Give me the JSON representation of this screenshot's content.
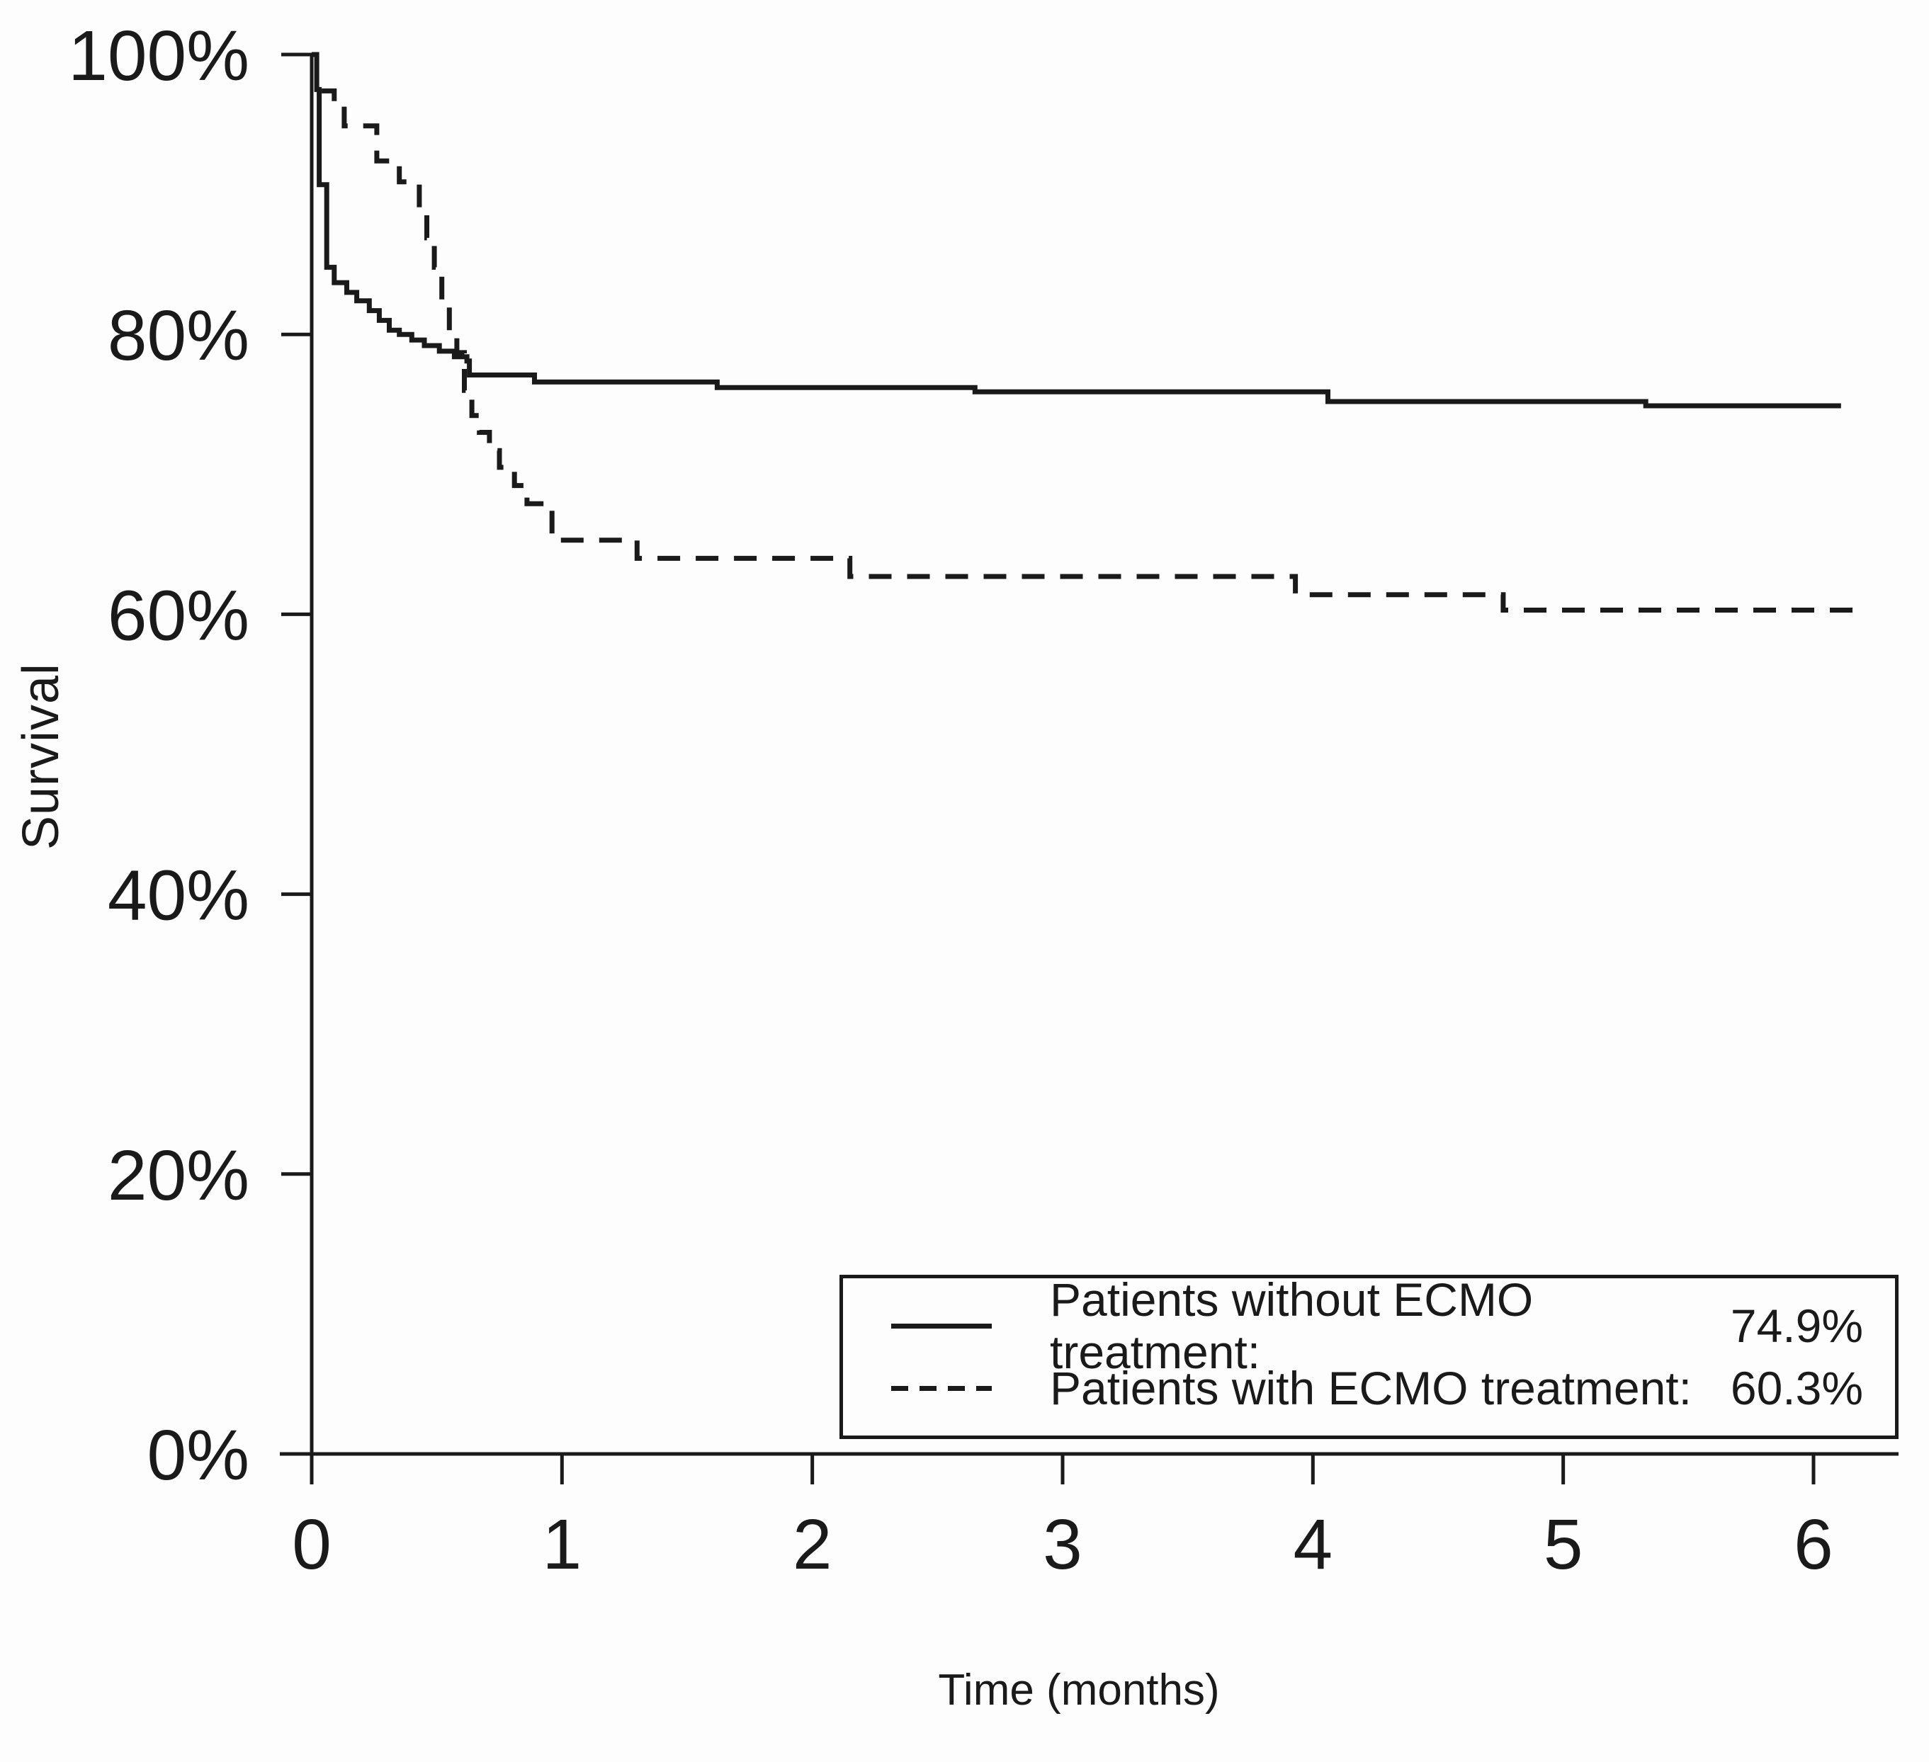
{
  "figure": {
    "background": "#fdfdfd",
    "line_color": "#1a1a1a",
    "text_color": "#1a1a1a"
  },
  "y_axis": {
    "title": "Survival",
    "tick_labels": [
      "0%",
      "20%",
      "40%",
      "60%",
      "80%",
      "100%"
    ],
    "tick_values": [
      0,
      20,
      40,
      60,
      80,
      100
    ]
  },
  "x_axis": {
    "title": "Time (months)",
    "tick_labels": [
      "0",
      "1",
      "2",
      "3",
      "4",
      "5",
      "6"
    ],
    "tick_values": [
      0,
      1,
      2,
      3,
      4,
      5,
      6
    ]
  },
  "legend": {
    "items": [
      {
        "style": "solid",
        "label": "Patients without ECMO treatment:",
        "value": "74.9%"
      },
      {
        "style": "dashed",
        "label": "Patients with ECMO treatment:",
        "value": "60.3%"
      }
    ]
  },
  "chart_data": {
    "type": "line",
    "subtype": "kaplan-meier-step",
    "title": "",
    "xlabel": "Time (months)",
    "ylabel": "Survival",
    "xlim": [
      0,
      6.34
    ],
    "ylim": [
      0,
      100
    ],
    "x_ticks": [
      0,
      1,
      2,
      3,
      4,
      5,
      6
    ],
    "y_ticks": [
      0,
      20,
      40,
      60,
      80,
      100
    ],
    "grid": false,
    "legend_position": "bottom-right",
    "series": [
      {
        "name": "Patients without ECMO treatment",
        "line_style": "solid",
        "final_value_pct": 74.9,
        "points": [
          [
            0,
            100
          ],
          [
            0.02,
            97.5
          ],
          [
            0.03,
            90.7
          ],
          [
            0.06,
            84.8
          ],
          [
            0.09,
            83.7
          ],
          [
            0.14,
            83.0
          ],
          [
            0.18,
            82.4
          ],
          [
            0.23,
            81.7
          ],
          [
            0.27,
            81.0
          ],
          [
            0.31,
            80.3
          ],
          [
            0.35,
            80.0
          ],
          [
            0.4,
            79.6
          ],
          [
            0.45,
            79.2
          ],
          [
            0.51,
            78.8
          ],
          [
            0.57,
            78.4
          ],
          [
            0.62,
            78.1
          ],
          [
            0.63,
            77.1
          ],
          [
            0.89,
            76.6
          ],
          [
            1.62,
            76.2
          ],
          [
            2.65,
            75.9
          ],
          [
            4.06,
            75.2
          ],
          [
            5.33,
            74.9
          ],
          [
            6.11,
            74.9
          ]
        ]
      },
      {
        "name": "Patients with ECMO treatment",
        "line_style": "dashed",
        "final_value_pct": 60.3,
        "points": [
          [
            0.04,
            97.4
          ],
          [
            0.09,
            96.1
          ],
          [
            0.13,
            94.9
          ],
          [
            0.26,
            92.4
          ],
          [
            0.35,
            90.9
          ],
          [
            0.43,
            88.9
          ],
          [
            0.46,
            86.9
          ],
          [
            0.49,
            84.8
          ],
          [
            0.52,
            82.3
          ],
          [
            0.55,
            80.0
          ],
          [
            0.58,
            78.7
          ],
          [
            0.61,
            76.0
          ],
          [
            0.64,
            74.2
          ],
          [
            0.67,
            73.0
          ],
          [
            0.71,
            71.7
          ],
          [
            0.75,
            70.5
          ],
          [
            0.81,
            69.2
          ],
          [
            0.86,
            67.9
          ],
          [
            0.96,
            65.3
          ],
          [
            1.3,
            64.0
          ],
          [
            2.15,
            62.7
          ],
          [
            3.93,
            61.4
          ],
          [
            4.76,
            60.3
          ],
          [
            6.2,
            60.3
          ]
        ]
      }
    ]
  }
}
